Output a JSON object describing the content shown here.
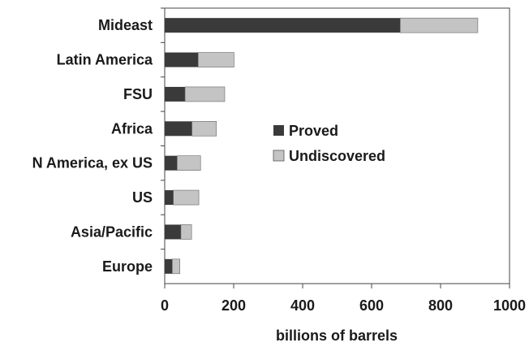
{
  "chart_data": {
    "type": "bar",
    "orientation": "horizontal",
    "stacked": true,
    "categories": [
      "Mideast",
      "Latin America",
      "FSU",
      "Africa",
      "N America, ex US",
      "US",
      "Asia/Pacific",
      "Europe"
    ],
    "series": [
      {
        "name": "Proved",
        "color": "#3a3a3a",
        "values": [
          683,
          97,
          59,
          79,
          36,
          25,
          47,
          22
        ]
      },
      {
        "name": "Undiscovered",
        "color": "#c4c4c4",
        "values": [
          225,
          104,
          115,
          71,
          68,
          74,
          31,
          22
        ]
      }
    ],
    "xlabel": "billions of barrels",
    "xlim": [
      0,
      1000
    ],
    "xticks": [
      "0",
      "200",
      "400",
      "600",
      "800",
      "1000"
    ],
    "grid": false,
    "legend_position": "right-center"
  }
}
